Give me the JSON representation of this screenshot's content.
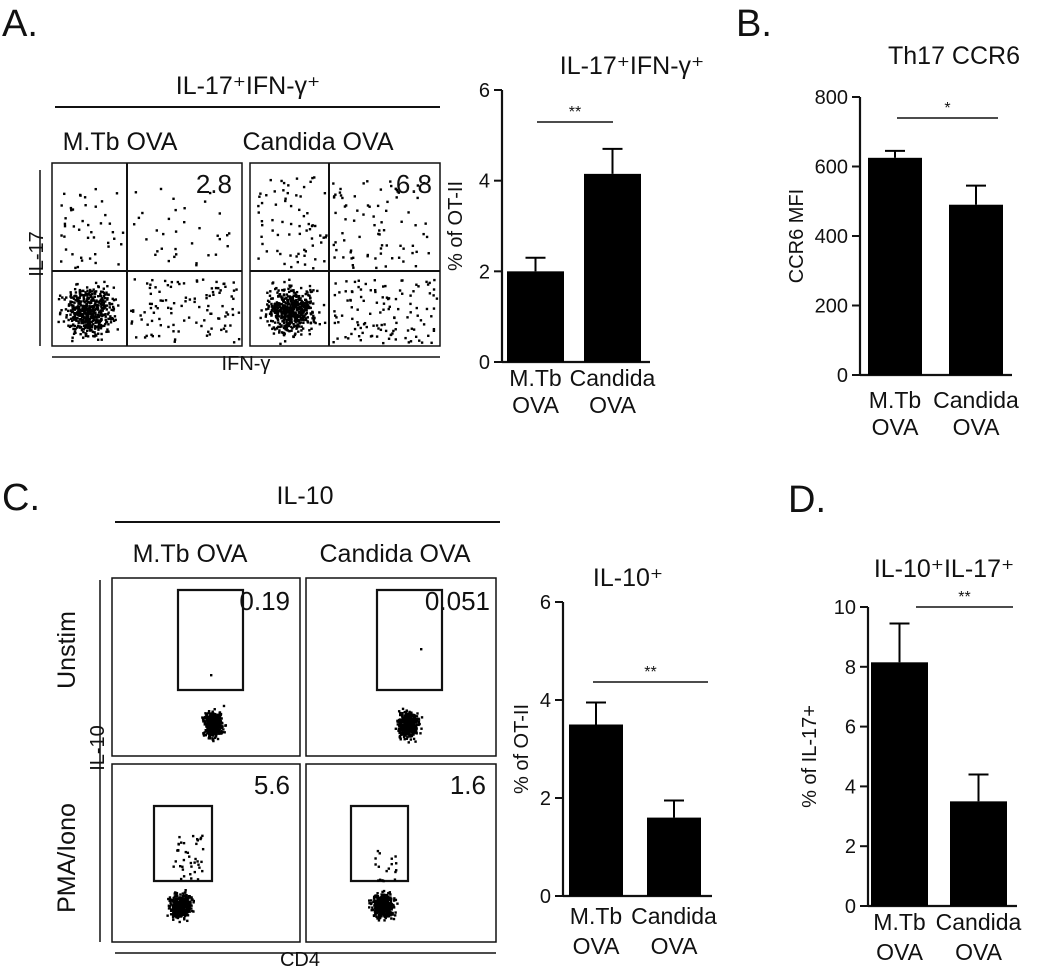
{
  "figure": {
    "panels": [
      {
        "id": "A",
        "letter": "A.",
        "flow": {
          "header": "IL-17⁺IFN-γ⁺",
          "sample_labels": [
            "M.Tb OVA",
            "Candida OVA"
          ],
          "y_axis": "IL-17",
          "x_axis": "IFN-γ",
          "gate_values": [
            "2.8",
            "6.8"
          ]
        }
      },
      {
        "id": "B",
        "letter": "B."
      },
      {
        "id": "C",
        "letter": "C.",
        "flow": {
          "header": "IL-10",
          "sample_labels": [
            "M.Tb OVA",
            "Candida OVA"
          ],
          "row_labels": [
            "Unstim",
            "PMA/Iono"
          ],
          "y_axis": "IL-10",
          "x_axis": "CD4",
          "gate_values": [
            [
              "0.19",
              "0.051"
            ],
            [
              "5.6",
              "1.6"
            ]
          ]
        }
      },
      {
        "id": "D",
        "letter": "D."
      }
    ]
  },
  "chart_data": [
    {
      "panel": "A",
      "type": "bar",
      "title": "IL-17⁺IFN-γ⁺",
      "categories": [
        [
          "M.Tb",
          "OVA"
        ],
        [
          "Candida",
          "OVA"
        ]
      ],
      "values": [
        2.0,
        4.15
      ],
      "errors": [
        0.3,
        0.55
      ],
      "ylabel": "% of OT-II",
      "ylim": [
        0,
        6
      ],
      "yticks": [
        0,
        2,
        4,
        6
      ],
      "significance": "**",
      "grid": false
    },
    {
      "panel": "B",
      "type": "bar",
      "title": "Th17 CCR6",
      "categories": [
        [
          "M.Tb",
          "OVA"
        ],
        [
          "Candida",
          "OVA"
        ]
      ],
      "values": [
        625,
        490
      ],
      "errors": [
        20,
        55
      ],
      "ylabel": "CCR6 MFI",
      "ylim": [
        0,
        800
      ],
      "yticks": [
        0,
        200,
        400,
        600,
        800
      ],
      "significance": "*",
      "grid": false
    },
    {
      "panel": "C",
      "type": "bar",
      "title": "IL-10⁺",
      "categories": [
        [
          "M.Tb",
          "OVA"
        ],
        [
          "Candida",
          "OVA"
        ]
      ],
      "values": [
        3.5,
        1.6
      ],
      "errors": [
        0.45,
        0.35
      ],
      "ylabel": "% of OT-II",
      "ylim": [
        0,
        6
      ],
      "yticks": [
        0,
        2,
        4,
        6
      ],
      "significance": "**",
      "grid": false
    },
    {
      "panel": "D",
      "type": "bar",
      "title": "IL-10⁺IL-17⁺",
      "categories": [
        [
          "M.Tb",
          "OVA"
        ],
        [
          "Candida",
          "OVA"
        ]
      ],
      "values": [
        8.15,
        3.5
      ],
      "errors": [
        1.3,
        0.9
      ],
      "ylabel": "% of IL-17+",
      "ylim": [
        0,
        10
      ],
      "yticks": [
        0,
        2,
        4,
        6,
        8,
        10
      ],
      "significance": "**",
      "grid": false
    }
  ]
}
